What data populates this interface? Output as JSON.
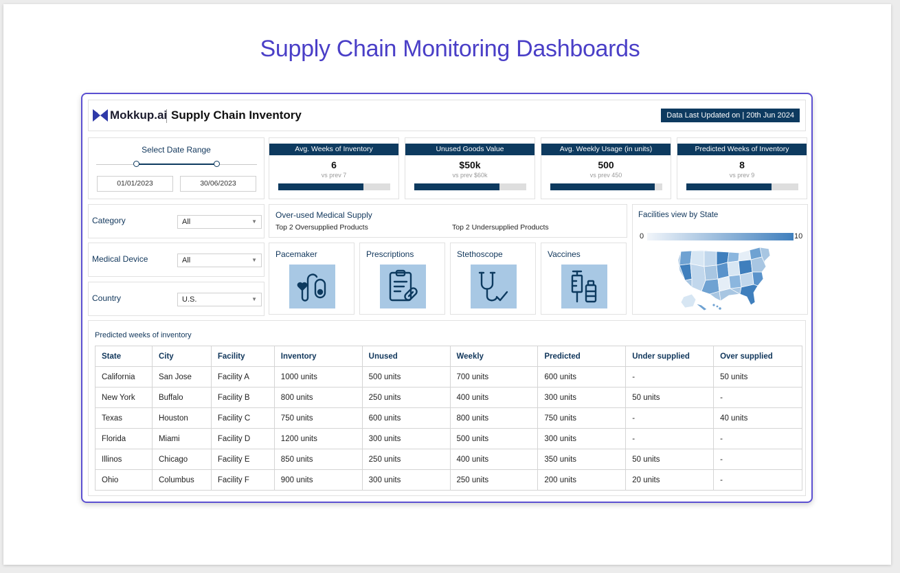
{
  "page": {
    "title": "Supply Chain Monitoring Dashboards"
  },
  "header": {
    "brand": "Mokkup.ai",
    "app_title": "Supply Chain Inventory",
    "updated_text": "Data Last Updated on | 20th Jun 2024",
    "logo_color": "#2f3aa8"
  },
  "date_range": {
    "title": "Select Date Range",
    "start": "01/01/2023",
    "end": "30/06/2023"
  },
  "kpis": [
    {
      "title": "Avg. Weeks of Inventory",
      "value": "6",
      "prev": "vs prev 7",
      "fill": 0.76
    },
    {
      "title": "Unused Goods Value",
      "value": "$50k",
      "prev": "vs prev $60k",
      "fill": 0.76
    },
    {
      "title": "Avg. Weekly Usage (in units)",
      "value": "500",
      "prev": "vs prev 450",
      "fill": 0.93
    },
    {
      "title": "Predicted Weeks of Inventory",
      "value": "8",
      "prev": "vs prev 9",
      "fill": 0.76
    }
  ],
  "filters": [
    {
      "label": "Category",
      "value": "All"
    },
    {
      "label": "Medical Device",
      "value": "All"
    },
    {
      "label": "Country",
      "value": "U.S."
    }
  ],
  "overused": {
    "title": "Over-used Medical Supply",
    "left_sub": "Top 2 Oversupplied Products",
    "right_sub": "Top 2 Undersupplied Products"
  },
  "products": [
    {
      "name": "Pacemaker",
      "icon": "pacemaker-icon"
    },
    {
      "name": "Prescriptions",
      "icon": "prescription-icon"
    },
    {
      "name": "Stethoscope",
      "icon": "stethoscope-icon"
    },
    {
      "name": "Vaccines",
      "icon": "vaccine-icon"
    }
  ],
  "map": {
    "title": "Facilities view by State",
    "legend_min": "0",
    "legend_max": "10",
    "low_color": "#f1f5fa",
    "high_color": "#3f7fbd"
  },
  "table": {
    "title": "Predicted weeks of inventory",
    "columns": [
      "State",
      "City",
      "Facility",
      "Inventory",
      "Unused",
      "Weekly",
      "Predicted",
      "Under supplied",
      "Over supplied"
    ],
    "rows": [
      [
        "California",
        "San Jose",
        "Facility A",
        "1000 units",
        "500 units",
        "700 units",
        "600 units",
        "-",
        "50 units"
      ],
      [
        "New York",
        "Buffalo",
        "Facility B",
        "800 units",
        "250 units",
        "400 units",
        "300 units",
        "50 units",
        "-"
      ],
      [
        "Texas",
        "Houston",
        "Facility C",
        "750 units",
        "600 units",
        "800 units",
        "750 units",
        "-",
        "40 units"
      ],
      [
        "Florida",
        "Miami",
        "Facility D",
        "1200 units",
        "300 units",
        "500 units",
        "300 units",
        "-",
        "-"
      ],
      [
        "Illinos",
        "Chicago",
        "Facility E",
        "850 units",
        "250 units",
        "400 units",
        "350 units",
        "50 units",
        "-"
      ],
      [
        "Ohio",
        "Columbus",
        "Facility F",
        "900 units",
        "300 units",
        "250 units",
        "200 units",
        "20 units",
        "-"
      ]
    ]
  },
  "colors": {
    "accent": "#4a3fc7",
    "navy": "#0d3a5f",
    "tile": "#a8c8e4"
  }
}
